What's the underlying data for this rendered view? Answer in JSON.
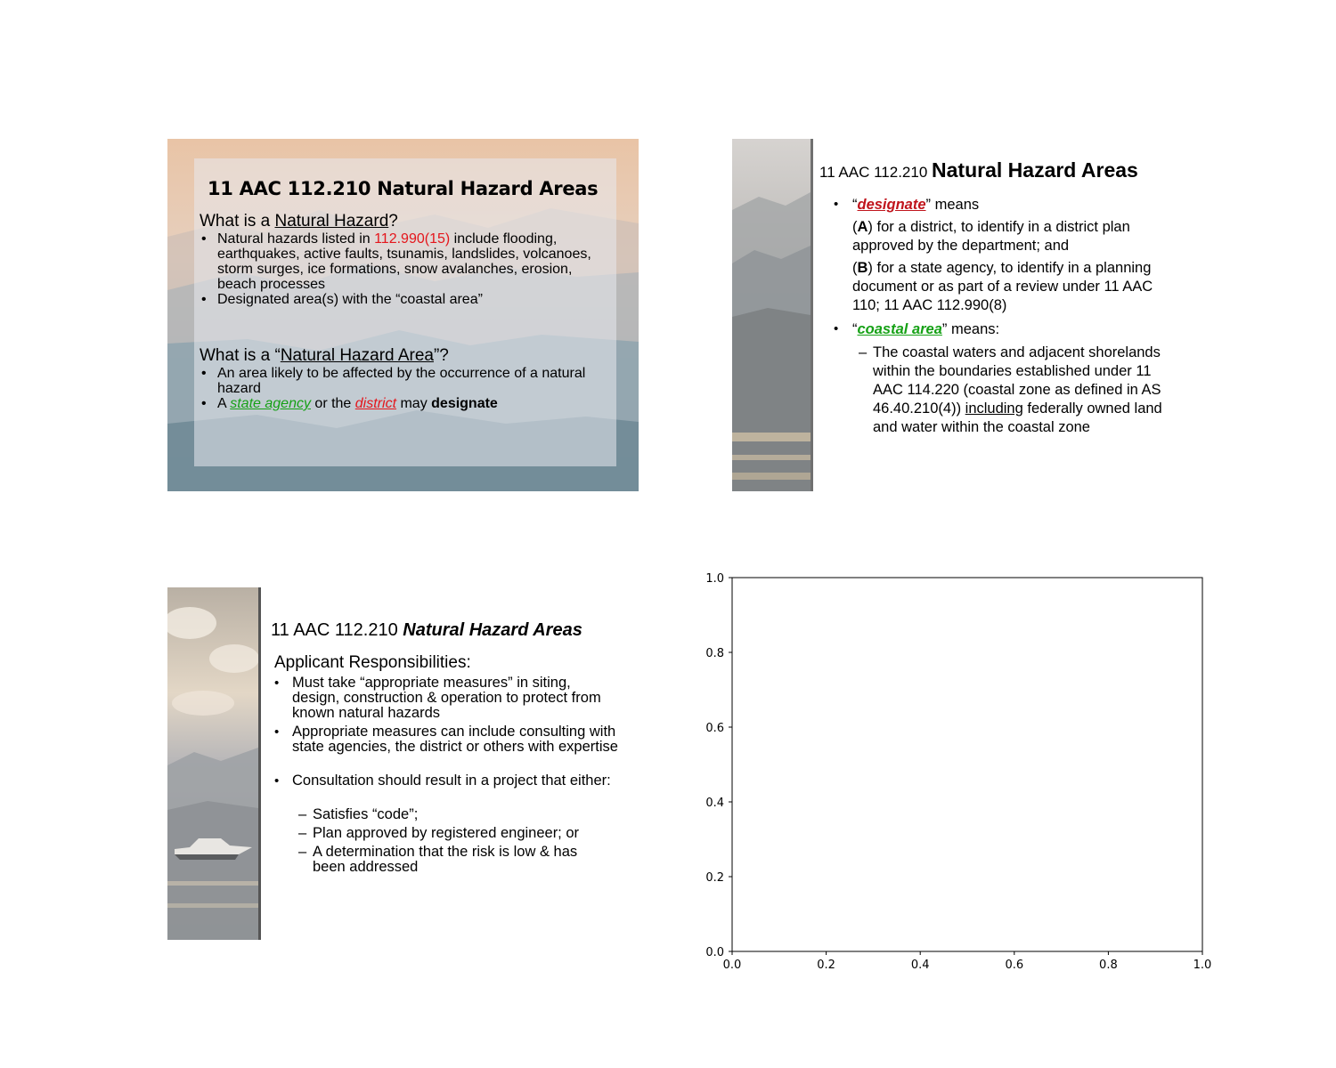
{
  "slide1": {
    "title": "11 AAC 112.210 Natural Hazard Areas",
    "q1_prefix": "What is a ",
    "q1_term": "Natural Hazard",
    "q1_suffix": "?",
    "b1_pre": "Natural hazards listed in ",
    "b1_ref": "112.990(15)",
    "b1_post": " include flooding, earthquakes, active faults, tsunamis, landslides, volcanoes, storm surges, ice formations, snow avalanches, erosion, beach processes",
    "b2": "Designated area(s) with the “coastal area”",
    "q2_prefix": "What is a “",
    "q2_term": "Natural Hazard Area",
    "q2_suffix": "”?",
    "b3": "An area likely to be affected by the occurrence of a natural hazard",
    "b4_a": "A ",
    "b4_agency": "state agency",
    "b4_or": " or the ",
    "b4_district": "district",
    "b4_may": " may ",
    "b4_designate": "designate"
  },
  "slide2": {
    "title_code": "11 AAC 112.210 ",
    "title_name": "Natural Hazard Areas",
    "bullet_glyph": "•",
    "dash_glyph": "–",
    "d_open": "“",
    "d_term": "designate",
    "d_close": "” means",
    "a_letter": "A",
    "a_text": ") for a district, to identify in a district plan approved by the department; and",
    "b_letter": "B",
    "b_text": ") for a state agency, to identify in a planning document or as part of a review under 11 AAC 110; 11 AAC 112.990(8)",
    "c_open": "“",
    "c_term": "coastal area",
    "c_close": "” means:",
    "sub_pre": "The coastal waters and adjacent shorelands within the boundaries established under 11 AAC 114.220 (coastal zone as defined in AS 46.40.210(4)) ",
    "sub_including": "including",
    "sub_post": " federally owned land and water within the coastal zone"
  },
  "slide3": {
    "title_code": "11 AAC 112.210 ",
    "title_name": "Natural Hazard Areas",
    "heading": "Applicant Responsibilities:",
    "bullet_glyph": "•",
    "dash_glyph": "–",
    "bullets": [
      "Must take “appropriate measures” in siting, design, construction & operation to protect from known natural hazards",
      "Appropriate measures can include consulting with state agencies, the district or others with expertise",
      "Consultation should result in a project that either:"
    ],
    "subs": [
      "Satisfies “code”;",
      "Plan approved by registered engineer; or",
      "A determination that the risk is low & has been addressed"
    ]
  },
  "chart_data": {
    "type": "scatter",
    "title": "",
    "xlabel": "",
    "ylabel": "",
    "xlim": [
      0.0,
      1.0
    ],
    "ylim": [
      0.0,
      1.0
    ],
    "xticks": [
      "0.0",
      "0.2",
      "0.4",
      "0.6",
      "0.8",
      "1.0"
    ],
    "yticks": [
      "0.0",
      "0.2",
      "0.4",
      "0.6",
      "0.8",
      "1.0"
    ],
    "series": [],
    "grid": false
  }
}
